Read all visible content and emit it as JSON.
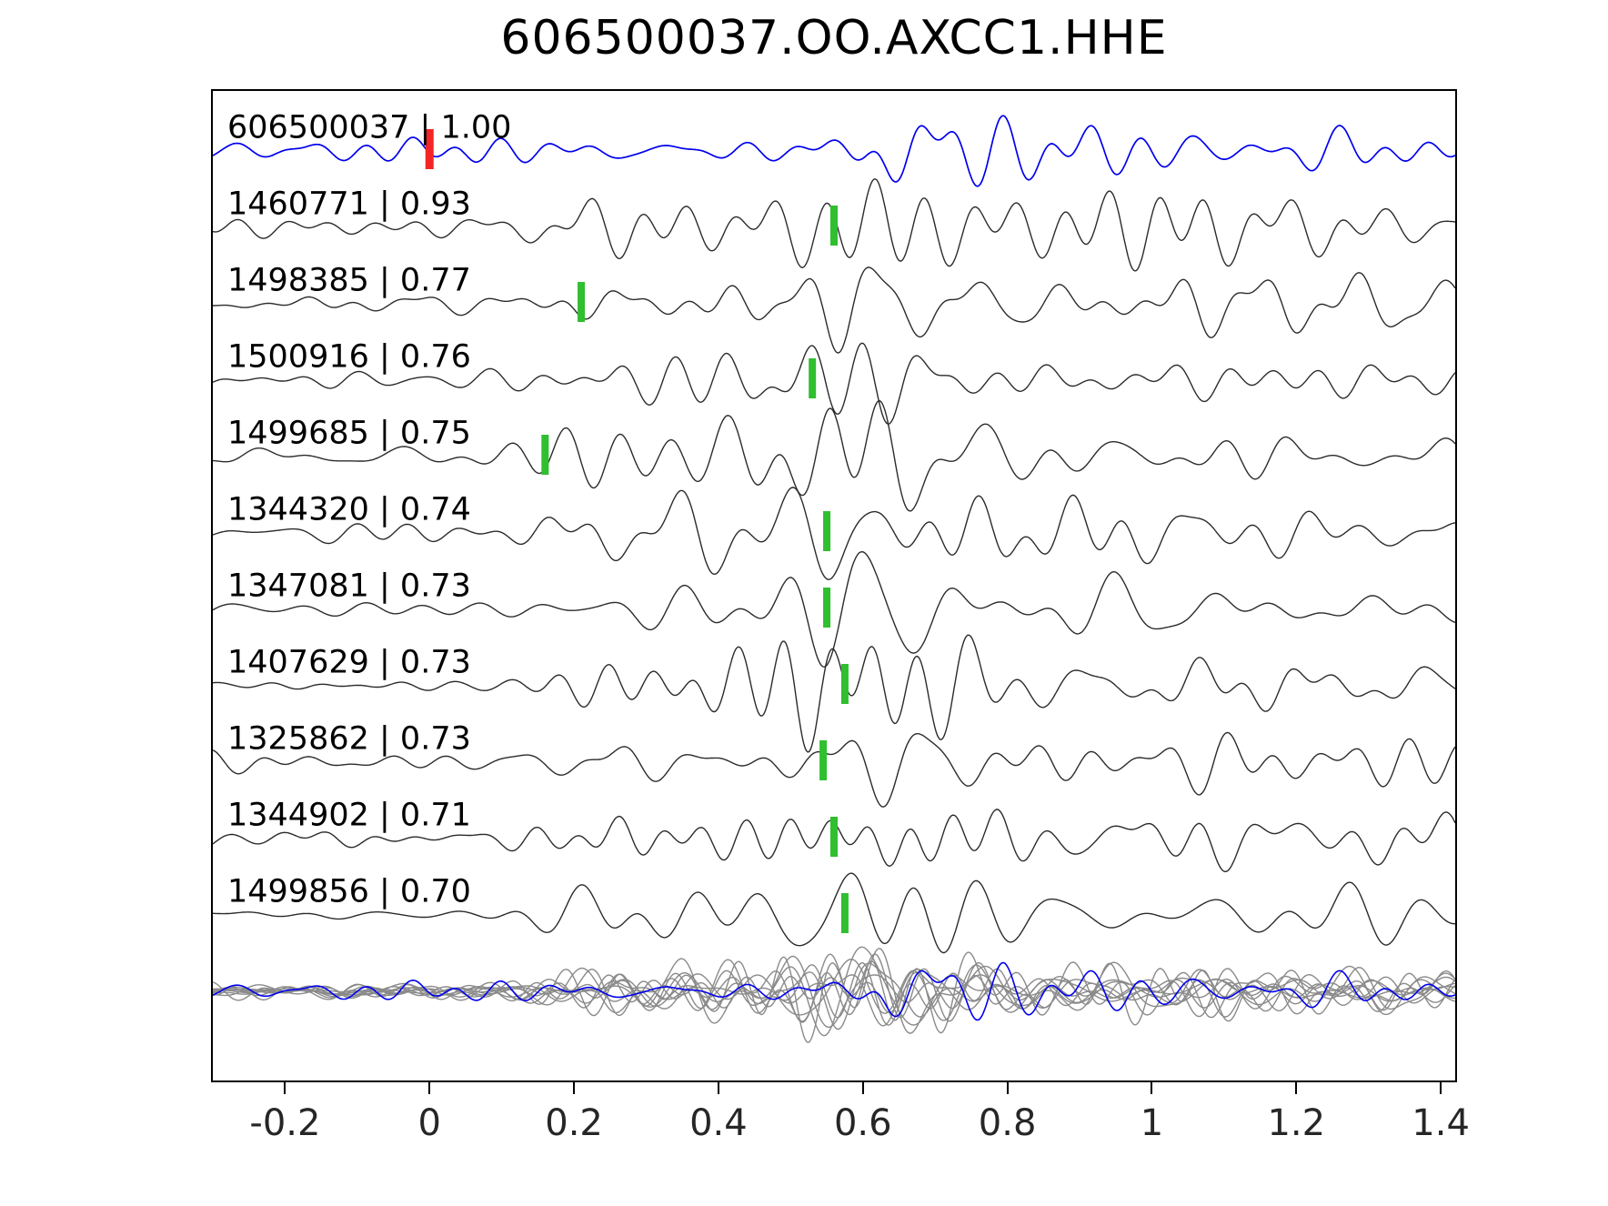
{
  "chart_data": {
    "type": "line",
    "title": "606500037.OO.AXCC1.HHE",
    "xlabel": "",
    "ylabel": "",
    "xlim": [
      -0.3,
      1.42
    ],
    "x_ticks": [
      -0.2,
      0,
      0.2,
      0.4,
      0.6,
      0.8,
      1,
      1.2,
      1.4
    ],
    "x_tick_labels": [
      "-0.2",
      "0",
      "0.2",
      "0.4",
      "0.6",
      "0.8",
      "1",
      "1.2",
      "1.4"
    ],
    "grid": false,
    "legend": false,
    "note": "Seismic waveform similarity plot: reference trace (blue) with template matches; waveform shapes are schematic, amplitudes are unlabeled in the source figure. Vertical colored bars are phase picks.",
    "colors": {
      "reference_trace": "#0000ee",
      "member_trace": "#2b2b2b",
      "overlay_trace": "#8a8a8a",
      "reference_pick": "#f42525",
      "member_pick": "#2fbf2f"
    },
    "series": [
      {
        "id": "606500037",
        "correlation": 1.0,
        "label": "606500037 | 1.00",
        "pick_time": 0.0,
        "role": "reference"
      },
      {
        "id": "1460771",
        "correlation": 0.93,
        "label": "1460771 | 0.93",
        "pick_time": 0.56,
        "role": "member"
      },
      {
        "id": "1498385",
        "correlation": 0.77,
        "label": "1498385 | 0.77",
        "pick_time": 0.21,
        "role": "member"
      },
      {
        "id": "1500916",
        "correlation": 0.76,
        "label": "1500916 | 0.76",
        "pick_time": 0.53,
        "role": "member"
      },
      {
        "id": "1499685",
        "correlation": 0.75,
        "label": "1499685 | 0.75",
        "pick_time": 0.16,
        "role": "member"
      },
      {
        "id": "1344320",
        "correlation": 0.74,
        "label": "1344320 | 0.74",
        "pick_time": 0.55,
        "role": "member"
      },
      {
        "id": "1347081",
        "correlation": 0.73,
        "label": "1347081 | 0.73",
        "pick_time": 0.55,
        "role": "member"
      },
      {
        "id": "1407629",
        "correlation": 0.73,
        "label": "1407629 | 0.73",
        "pick_time": 0.575,
        "role": "member"
      },
      {
        "id": "1325862",
        "correlation": 0.73,
        "label": "1325862 | 0.73",
        "pick_time": 0.545,
        "role": "member"
      },
      {
        "id": "1344902",
        "correlation": 0.71,
        "label": "1344902 | 0.71",
        "pick_time": 0.56,
        "role": "member"
      },
      {
        "id": "1499856",
        "correlation": 0.7,
        "label": "1499856 | 0.70",
        "pick_time": 0.575,
        "role": "member"
      }
    ],
    "overlay_row": {
      "description": "all member traces overlaid in gray with the reference trace in blue"
    }
  }
}
